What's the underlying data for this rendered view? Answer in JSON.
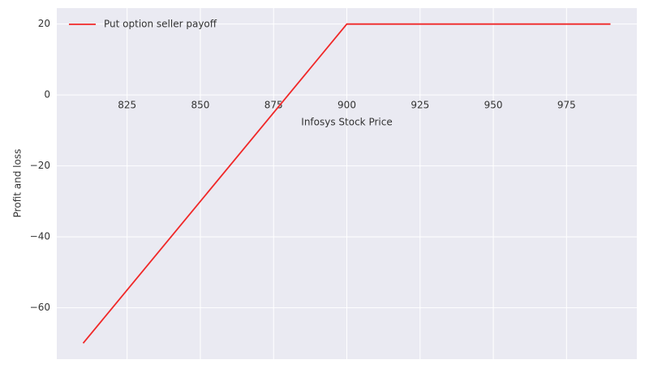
{
  "chart_data": {
    "type": "line",
    "xlabel": "Infosys Stock Price",
    "ylabel": "Profit and loss",
    "x": [
      810,
      900,
      990
    ],
    "series": [
      {
        "name": "Put option seller payoff",
        "color": "#f02828",
        "values": [
          -70,
          20,
          20
        ]
      }
    ],
    "xlim": [
      801,
      999
    ],
    "xticks": [
      825,
      850,
      875,
      900,
      925,
      950,
      975
    ],
    "ylim": [
      -74.5,
      24.5
    ],
    "yticks": [
      {
        "value": -60,
        "label": "−60"
      },
      {
        "value": -40,
        "label": "−40"
      },
      {
        "value": -20,
        "label": "−20"
      },
      0,
      20
    ],
    "grid": true,
    "legend": "upper left"
  }
}
